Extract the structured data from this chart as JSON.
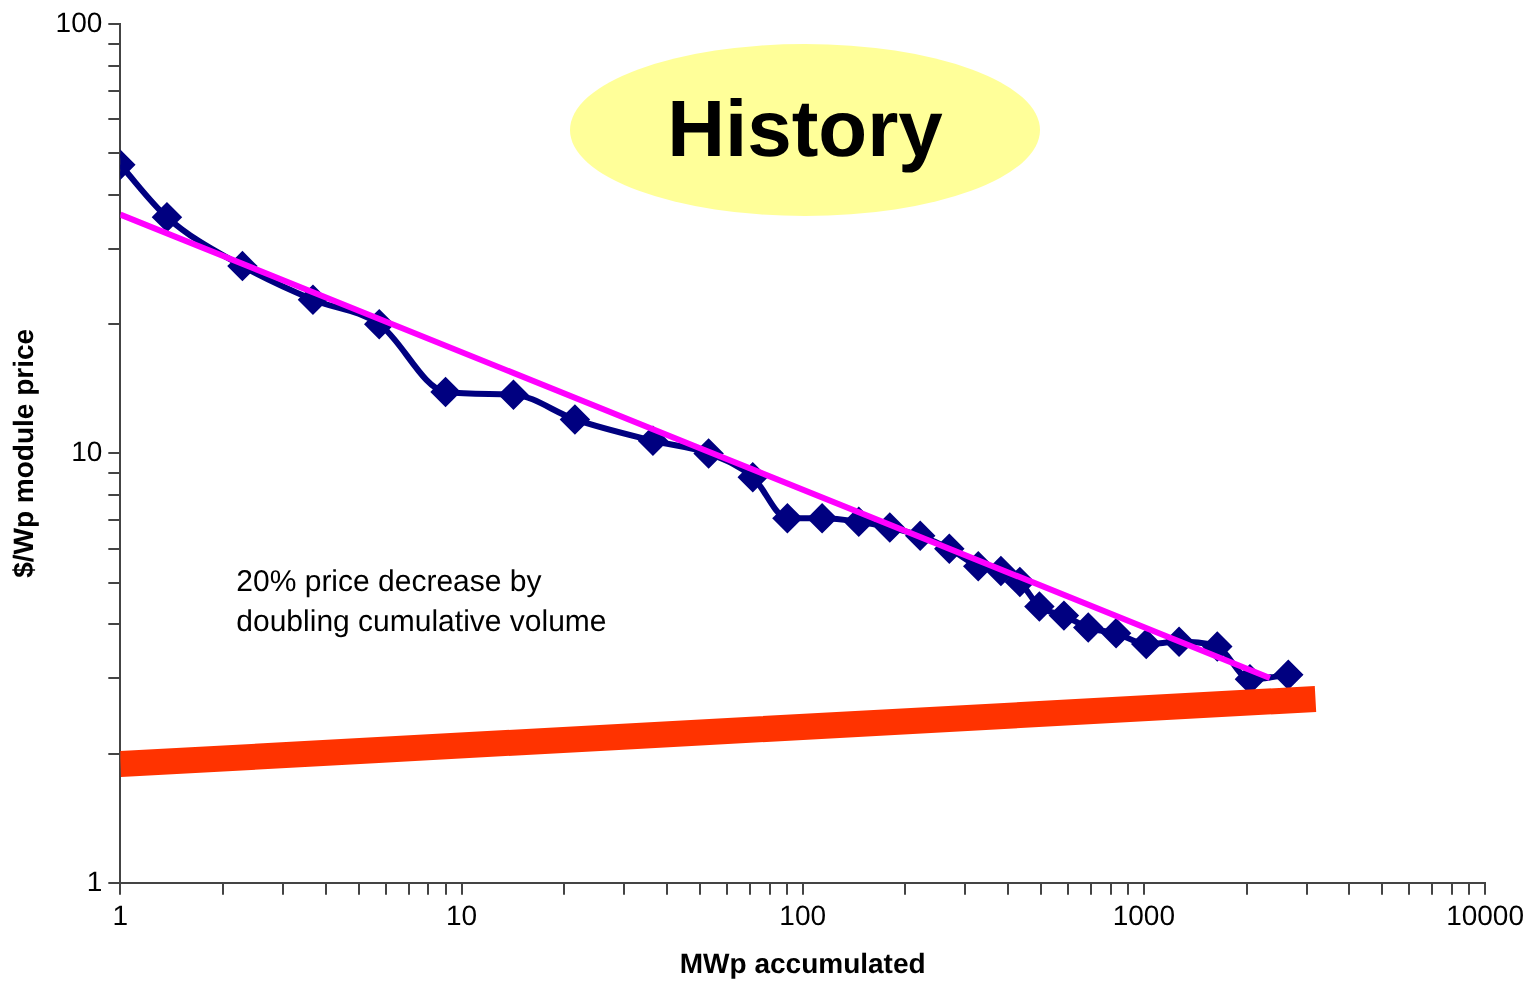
{
  "chart_data": {
    "type": "line",
    "title": "History",
    "xlabel": "MWp accumulated",
    "ylabel": "$/Wp module price",
    "annotations": [
      "20% price decrease by doubling cumulative volume"
    ],
    "log": "xy",
    "grid": false,
    "legend": false,
    "xlim": [
      1,
      10000
    ],
    "ylim": [
      1,
      100
    ],
    "xticks": [
      1,
      {
        "value": 2,
        "label": null
      },
      {
        "value": 3,
        "label": null
      },
      {
        "value": 4,
        "label": null
      },
      {
        "value": 5,
        "label": null
      },
      {
        "value": 6,
        "label": null
      },
      {
        "value": 7,
        "label": null
      },
      {
        "value": 8,
        "label": null
      },
      {
        "value": 9,
        "label": null
      },
      10,
      {
        "value": 20,
        "label": null
      },
      {
        "value": 30,
        "label": null
      },
      {
        "value": 40,
        "label": null
      },
      {
        "value": 50,
        "label": null
      },
      {
        "value": 60,
        "label": null
      },
      {
        "value": 70,
        "label": null
      },
      {
        "value": 80,
        "label": null
      },
      {
        "value": 90,
        "label": null
      },
      100,
      {
        "value": 200,
        "label": null
      },
      {
        "value": 300,
        "label": null
      },
      {
        "value": 400,
        "label": null
      },
      {
        "value": 500,
        "label": null
      },
      {
        "value": 600,
        "label": null
      },
      {
        "value": 700,
        "label": null
      },
      {
        "value": 800,
        "label": null
      },
      {
        "value": 900,
        "label": null
      },
      1000,
      {
        "value": 2000,
        "label": null
      },
      {
        "value": 3000,
        "label": null
      },
      {
        "value": 4000,
        "label": null
      },
      {
        "value": 5000,
        "label": null
      },
      {
        "value": 6000,
        "label": null
      },
      {
        "value": 7000,
        "label": null
      },
      {
        "value": 8000,
        "label": null
      },
      {
        "value": 9000,
        "label": null
      },
      10000
    ],
    "yticks": [
      1,
      {
        "value": 2,
        "label": null
      },
      {
        "value": 3,
        "label": null
      },
      {
        "value": 4,
        "label": null
      },
      {
        "value": 5,
        "label": null
      },
      {
        "value": 6,
        "label": null
      },
      {
        "value": 7,
        "label": null
      },
      {
        "value": 8,
        "label": null
      },
      {
        "value": 9,
        "label": null
      },
      10,
      {
        "value": 20,
        "label": null
      },
      {
        "value": 30,
        "label": null
      },
      {
        "value": 40,
        "label": null
      },
      {
        "value": 50,
        "label": null
      },
      {
        "value": 60,
        "label": null
      },
      {
        "value": 70,
        "label": null
      },
      {
        "value": 80,
        "label": null
      },
      {
        "value": 90,
        "label": null
      },
      100
    ],
    "series": [
      {
        "color": "#ff3300",
        "marker": "none",
        "line_style": "solid",
        "x": [
          1,
          3184
        ],
        "values": [
          1.89,
          2.68
        ]
      },
      {
        "color": "#ff00ff",
        "marker": "none",
        "line_style": "solid",
        "x": [
          1,
          2340
        ],
        "values": [
          36,
          3.0
        ]
      },
      {
        "color": "#000080",
        "marker": "diamond",
        "line_style": "solid",
        "x": [
          1,
          1.37,
          2.28,
          3.67,
          5.74,
          8.98,
          14.2,
          21.5,
          36.4,
          53,
          71.4,
          90.2,
          114,
          146,
          180,
          221,
          269,
          327,
          381,
          433,
          494,
          583,
          687,
          829,
          1016,
          1268,
          1641,
          2046,
          2650
        ],
        "values": [
          47,
          35.5,
          27.3,
          22.8,
          20,
          13.9,
          13.7,
          12,
          10.7,
          10,
          8.8,
          7.06,
          7.06,
          6.93,
          6.72,
          6.43,
          6,
          5.46,
          5.32,
          5.02,
          4.4,
          4.19,
          3.93,
          3.81,
          3.6,
          3.64,
          3.55,
          2.98,
          3.05
        ]
      }
    ]
  }
}
